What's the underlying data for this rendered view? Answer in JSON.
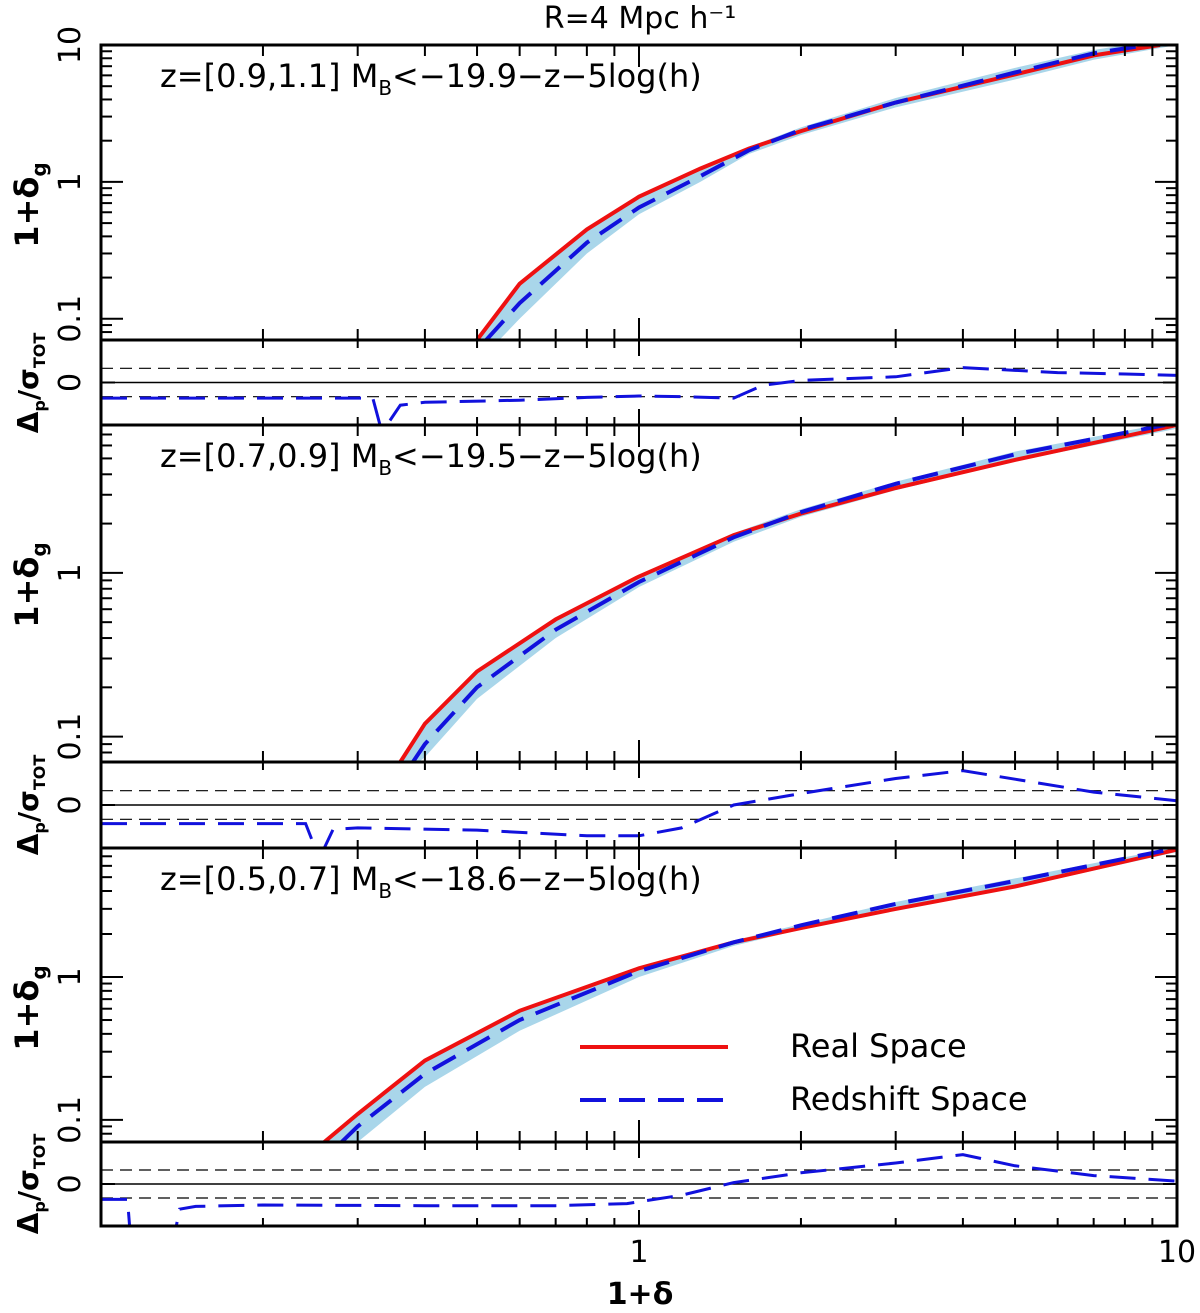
{
  "figure_title": "R=4 Mpc h⁻¹",
  "chart_data": {
    "type": "line",
    "figure_title": "R=4 Mpc h⁻¹",
    "xlabel": "1+δ",
    "x_scale": "log",
    "xlim": [
      0.1,
      10
    ],
    "x_tick_labels": [
      "1",
      "10"
    ],
    "legend": {
      "placement": "lower-right of bottom panel",
      "entries": [
        {
          "label": "Real Space",
          "color": "#ee1111",
          "style": "solid"
        },
        {
          "label": "Redshift Space",
          "color": "#1111dd",
          "style": "dashed"
        }
      ]
    },
    "colors": {
      "real": "#ee1111",
      "redshift": "#1111dd",
      "band": "#a9d6ea",
      "axis": "#000000"
    },
    "panels": [
      {
        "label": "z=[0.9,1.1]  M",
        "label_sub": "B",
        "label_rest": "<−19.9−z−5log(h)",
        "ylabel": "1+δ",
        "ylabel_sub": "g",
        "y_scale": "log",
        "ylim": [
          0.07,
          10
        ],
        "y_tick_labels": [
          "0.1",
          "1",
          "10"
        ],
        "real": {
          "x": [
            0.5,
            0.6,
            0.8,
            1.0,
            1.3,
            1.6,
            2.0,
            3.0,
            5.0,
            7.0,
            9.3
          ],
          "y": [
            0.07,
            0.18,
            0.45,
            0.78,
            1.25,
            1.75,
            2.35,
            3.8,
            6.1,
            8.4,
            10
          ]
        },
        "redshift": {
          "x": [
            0.52,
            0.6,
            0.8,
            1.0,
            1.3,
            1.6,
            2.0,
            3.0,
            5.0,
            7.0,
            8.8
          ],
          "y": [
            0.07,
            0.13,
            0.36,
            0.65,
            1.1,
            1.7,
            2.4,
            3.8,
            6.3,
            8.7,
            10
          ]
        },
        "band_upper": {
          "x": [
            0.5,
            0.6,
            0.8,
            1.0,
            1.3,
            1.6,
            2.0,
            3.0,
            5.0,
            7.0,
            8.0
          ],
          "y": [
            0.07,
            0.18,
            0.45,
            0.78,
            1.25,
            1.8,
            2.5,
            4.1,
            6.8,
            9.2,
            10
          ]
        },
        "band_lower": {
          "x": [
            0.55,
            0.6,
            0.8,
            1.0,
            1.3,
            1.6,
            2.0,
            3.0,
            5.0,
            7.0,
            10.0
          ],
          "y": [
            0.07,
            0.1,
            0.3,
            0.58,
            1.0,
            1.6,
            2.2,
            3.5,
            5.6,
            7.8,
            10
          ]
        },
        "residual": {
          "ylabel": "Δ",
          "ylabel_sub": "p",
          "ylabel_mid": "/σ",
          "ylabel_sub2": "TOT",
          "ylim": [
            -3,
            3
          ],
          "y_tick_labels": [
            "0"
          ],
          "dashed_levels": [
            -1,
            1
          ],
          "redshift": {
            "x": [
              0.1,
              0.32,
              0.33,
              0.34,
              0.36,
              0.4,
              0.6,
              0.8,
              1.0,
              1.2,
              1.5,
              1.7,
              2.0,
              3.0,
              4.0,
              6.0,
              8.0,
              10.0
            ],
            "y": [
              -1.1,
              -1.1,
              -3.0,
              -3.0,
              -1.6,
              -1.4,
              -1.25,
              -1.05,
              -0.95,
              -1.0,
              -1.1,
              -0.2,
              0.15,
              0.4,
              1.05,
              0.7,
              0.6,
              0.5
            ]
          }
        }
      },
      {
        "label": "z=[0.7,0.9]  M",
        "label_sub": "B",
        "label_rest": "<−19.5−z−5log(h)",
        "ylabel": "1+δ",
        "ylabel_sub": "g",
        "y_scale": "log",
        "ylim": [
          0.07,
          8
        ],
        "y_tick_labels": [
          "0.1",
          "1"
        ],
        "real": {
          "x": [
            0.36,
            0.4,
            0.5,
            0.7,
            1.0,
            1.5,
            2.0,
            3.0,
            5.0,
            10.0
          ],
          "y": [
            0.07,
            0.12,
            0.25,
            0.52,
            0.95,
            1.7,
            2.3,
            3.3,
            4.9,
            8.0
          ]
        },
        "redshift": {
          "x": [
            0.38,
            0.4,
            0.5,
            0.7,
            1.0,
            1.5,
            2.0,
            3.0,
            5.0,
            9.5
          ],
          "y": [
            0.07,
            0.09,
            0.2,
            0.45,
            0.88,
            1.65,
            2.35,
            3.5,
            5.3,
            8.0
          ]
        },
        "band_upper": {
          "x": [
            0.36,
            0.4,
            0.5,
            0.7,
            1.0,
            1.5,
            2.0,
            3.0,
            5.0,
            9.2
          ],
          "y": [
            0.07,
            0.12,
            0.25,
            0.52,
            0.95,
            1.75,
            2.45,
            3.6,
            5.5,
            8.0
          ]
        },
        "band_lower": {
          "x": [
            0.39,
            0.4,
            0.5,
            0.7,
            1.0,
            1.5,
            2.0,
            3.0,
            5.0,
            10.0
          ],
          "y": [
            0.07,
            0.075,
            0.17,
            0.4,
            0.82,
            1.55,
            2.2,
            3.2,
            4.8,
            7.6
          ]
        },
        "residual": {
          "ylabel": "Δ",
          "ylabel_sub": "p",
          "ylabel_mid": "/σ",
          "ylabel_sub2": "TOT",
          "ylim": [
            -3,
            3
          ],
          "y_tick_labels": [
            "0"
          ],
          "dashed_levels": [
            -1,
            1
          ],
          "redshift": {
            "x": [
              0.1,
              0.24,
              0.25,
              0.26,
              0.27,
              0.3,
              0.5,
              0.8,
              1.0,
              1.2,
              1.5,
              2.0,
              3.0,
              4.0,
              5.0,
              7.0,
              10.0
            ],
            "y": [
              -1.3,
              -1.3,
              -3.0,
              -3.0,
              -1.7,
              -1.6,
              -1.75,
              -2.15,
              -2.15,
              -1.6,
              0.0,
              0.8,
              1.85,
              2.4,
              1.8,
              0.9,
              0.3
            ]
          }
        }
      },
      {
        "label": "z=[0.5,0.7]  M",
        "label_sub": "B",
        "label_rest": "<−18.6−z−5log(h)",
        "ylabel": "1+δ",
        "ylabel_sub": "g",
        "y_scale": "log",
        "ylim": [
          0.07,
          8
        ],
        "y_tick_labels": [
          "0.1",
          "1"
        ],
        "real": {
          "x": [
            0.26,
            0.3,
            0.4,
            0.6,
            1.0,
            1.5,
            2.0,
            3.0,
            5.0,
            10.0
          ],
          "y": [
            0.07,
            0.11,
            0.26,
            0.58,
            1.15,
            1.75,
            2.2,
            3.0,
            4.3,
            7.8
          ]
        },
        "redshift": {
          "x": [
            0.28,
            0.3,
            0.4,
            0.6,
            1.0,
            1.5,
            2.0,
            3.0,
            5.0,
            10.0
          ],
          "y": [
            0.07,
            0.09,
            0.21,
            0.5,
            1.1,
            1.75,
            2.3,
            3.25,
            4.7,
            8.0
          ]
        },
        "band_upper": {
          "x": [
            0.26,
            0.3,
            0.4,
            0.6,
            1.0,
            1.5,
            2.0,
            3.0,
            5.0,
            9.8
          ],
          "y": [
            0.07,
            0.11,
            0.26,
            0.58,
            1.15,
            1.8,
            2.35,
            3.35,
            4.9,
            8.0
          ]
        },
        "band_lower": {
          "x": [
            0.3,
            0.3,
            0.4,
            0.6,
            1.0,
            1.5,
            2.0,
            3.0,
            5.0,
            10.0
          ],
          "y": [
            0.07,
            0.07,
            0.17,
            0.42,
            1.0,
            1.65,
            2.15,
            2.95,
            4.2,
            7.5
          ]
        },
        "residual": {
          "ylabel": "Δ",
          "ylabel_sub": "p",
          "ylabel_mid": "/σ",
          "ylabel_sub2": "TOT",
          "ylim": [
            -3,
            3
          ],
          "y_tick_labels": [
            "0"
          ],
          "dashed_levels": [
            -1,
            1
          ],
          "redshift": {
            "x": [
              0.1,
              0.112,
              0.113,
              0.138,
              0.14,
              0.15,
              0.2,
              0.4,
              0.7,
              0.95,
              1.2,
              1.5,
              2.0,
              3.0,
              4.0,
              5.0,
              7.0,
              10.0
            ],
            "y": [
              -1.1,
              -1.1,
              -3.0,
              -3.0,
              -1.8,
              -1.6,
              -1.5,
              -1.55,
              -1.55,
              -1.4,
              -0.8,
              0.1,
              0.8,
              1.5,
              2.1,
              1.3,
              0.6,
              0.2
            ]
          }
        }
      }
    ]
  }
}
